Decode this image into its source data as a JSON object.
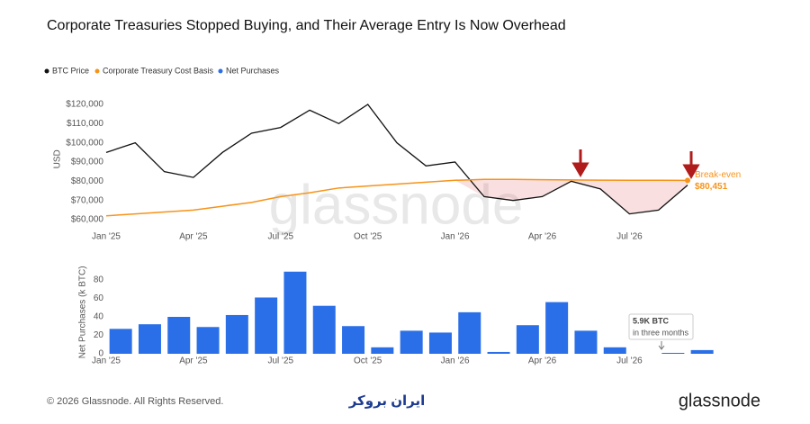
{
  "chart_data": [
    {
      "type": "line",
      "title": "Corporate Treasuries Stopped Buying, and Their Average Entry Is Now Overhead",
      "y_label": "USD",
      "categories": [
        "Jan '25",
        null,
        null,
        "Apr '25",
        null,
        null,
        "Jul '25",
        null,
        null,
        "Oct '25",
        null,
        null,
        "Jan '26",
        null,
        null,
        "Apr '26",
        null,
        null,
        "Jul '26",
        null,
        null
      ],
      "series": [
        {
          "name": "BTC Price",
          "color": "#111111",
          "values": [
            95000,
            100000,
            85000,
            82000,
            95000,
            105000,
            108000,
            117000,
            110000,
            120000,
            100000,
            88000,
            90000,
            72000,
            70000,
            72000,
            80000,
            76000,
            63000,
            65000,
            78000
          ]
        },
        {
          "name": "Corporate Treasury Cost Basis",
          "color": "#f7931a",
          "values": [
            62000,
            63000,
            64000,
            65000,
            67000,
            69000,
            72000,
            74000,
            76500,
            77500,
            78500,
            79500,
            80500,
            81000,
            81000,
            80800,
            80700,
            80600,
            80500,
            80500,
            80451
          ],
          "value_labels": [
            null,
            null,
            null,
            null,
            null,
            null,
            null,
            null,
            null,
            null,
            null,
            null,
            null,
            null,
            null,
            null,
            null,
            null,
            null,
            null,
            "$80,451"
          ]
        }
      ],
      "annotation": "Break-even",
      "ylim": [
        58000,
        125000
      ],
      "yticks": [
        {
          "value": 60000,
          "label": "$60,000"
        },
        {
          "value": 70000,
          "label": "$70,000"
        },
        {
          "value": 80000,
          "label": "$80,000"
        },
        {
          "value": 90000,
          "label": "$90,000"
        },
        {
          "value": 100000,
          "label": "$100,000"
        },
        {
          "value": 110000,
          "label": "$110,000"
        },
        {
          "value": 120000,
          "label": "$120,000"
        }
      ]
    },
    {
      "type": "bar",
      "y_label": "Net Purchases (k BTC)",
      "categories": [
        "Jan '25",
        null,
        null,
        "Apr '25",
        null,
        null,
        "Jul '25",
        null,
        null,
        "Oct '25",
        null,
        null,
        "Jan '26",
        null,
        null,
        "Apr '26",
        null,
        null,
        "Jul '26",
        null,
        null
      ],
      "series": [
        {
          "name": "Net Purchases",
          "color": "#2a6fe8",
          "values": [
            27,
            32,
            40,
            29,
            42,
            61,
            89,
            52,
            30,
            7,
            25,
            23,
            45,
            2,
            31,
            56,
            25,
            7,
            0,
            1,
            4
          ]
        }
      ],
      "annotation": [
        "5.9K BTC",
        "in three months"
      ],
      "ylim": [
        0,
        90
      ],
      "yticks": [
        0,
        20,
        40,
        60,
        80
      ]
    }
  ],
  "footer": {
    "copyright": "© 2026 Glassnode. All Rights Reserved.",
    "partner": "ایران بروکر",
    "brand": "glassnode",
    "watermark": "glassnode"
  }
}
